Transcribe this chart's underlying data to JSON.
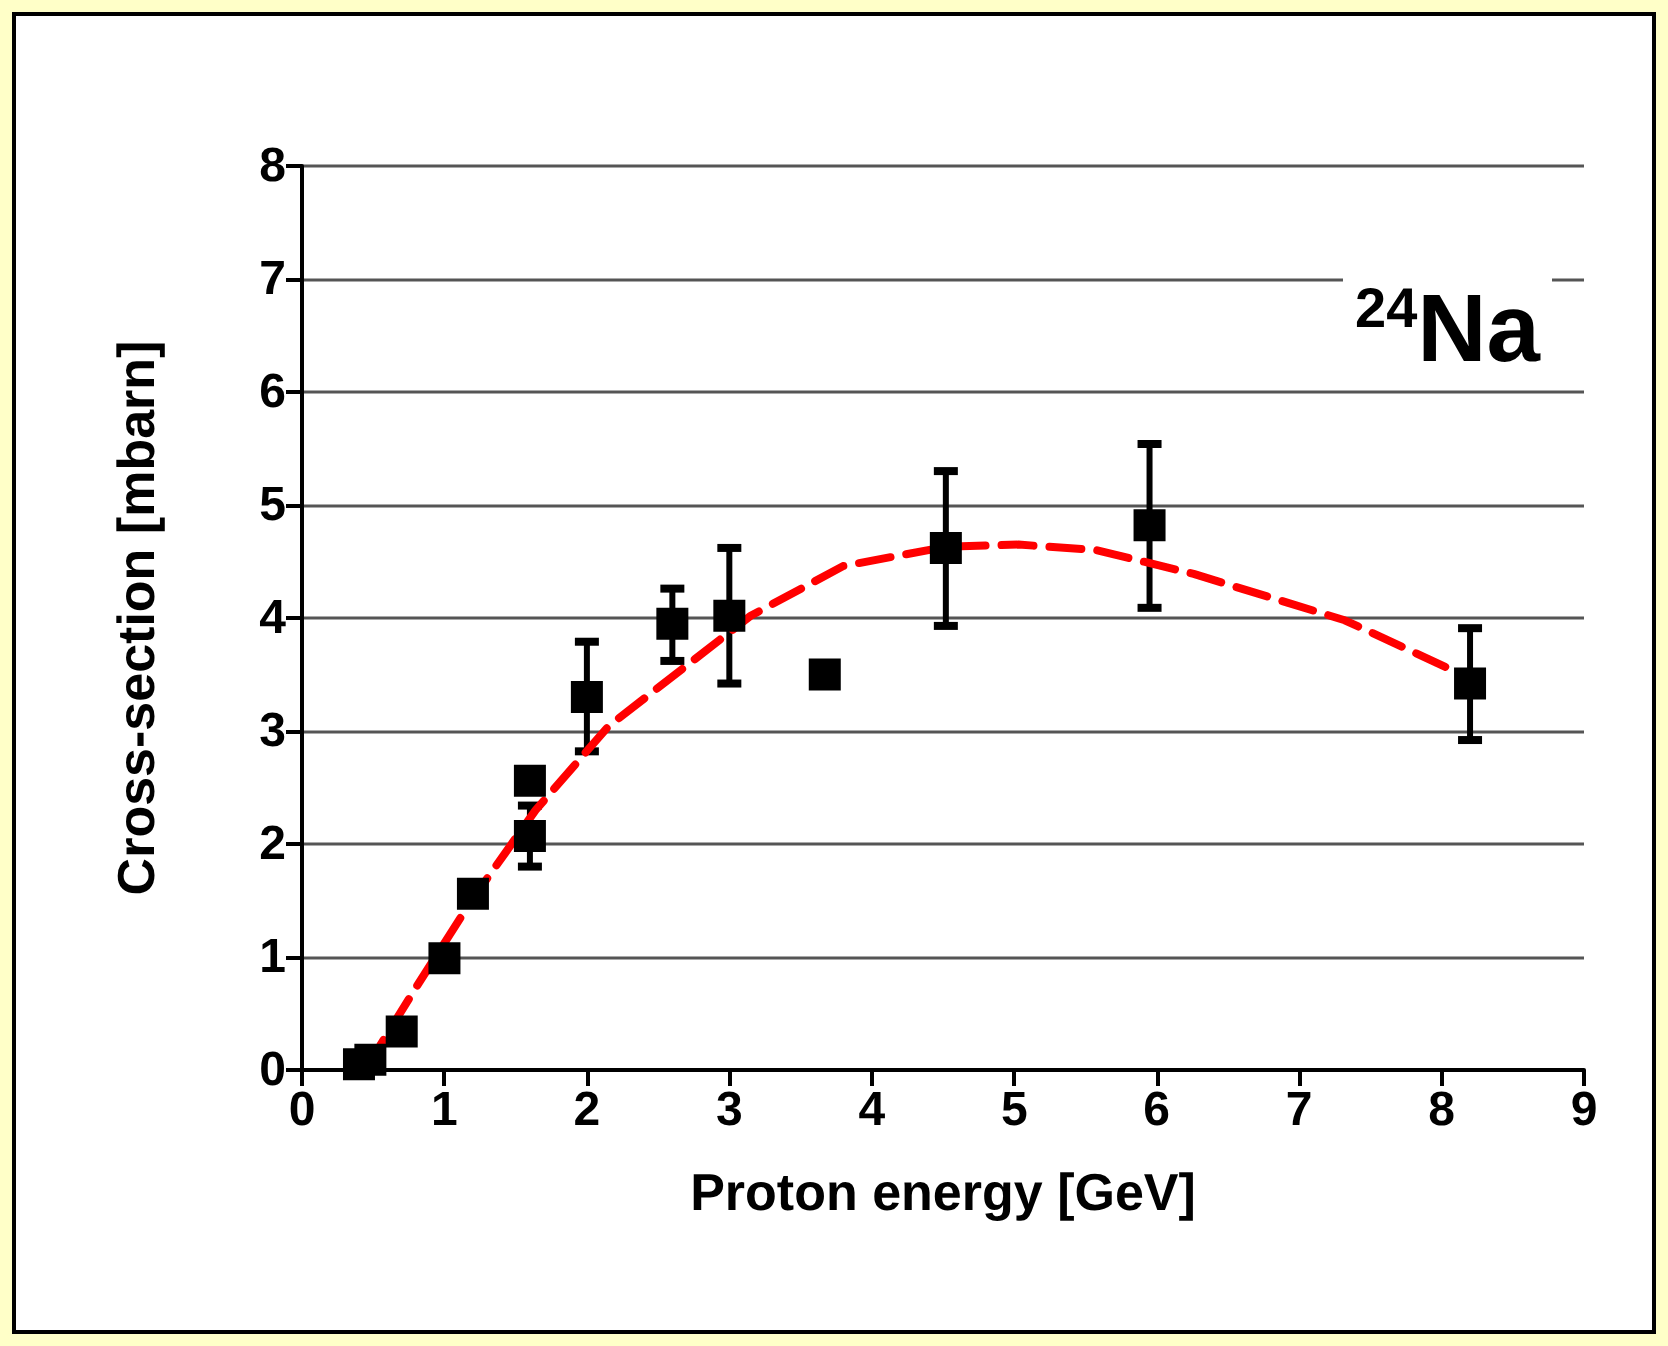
{
  "chart_data": {
    "type": "scatter",
    "xlabel": "Proton energy [GeV]",
    "ylabel": "Cross-section [mbarn]",
    "annotations": [
      "$^{24}$Na"
    ],
    "xlim": [
      0,
      9
    ],
    "ylim": [
      0,
      8
    ],
    "xticks": [
      0,
      1,
      2,
      3,
      4,
      5,
      6,
      7,
      8,
      9
    ],
    "yticks": [
      0,
      1,
      2,
      3,
      4,
      5,
      6,
      7,
      8
    ],
    "grid": "y",
    "marker": "square",
    "series": [
      {
        "color": "#000000",
        "x": [
          0.4,
          0.48,
          0.7,
          1.0,
          1.2,
          1.6,
          1.6,
          2.0,
          2.6,
          3.0,
          3.67,
          4.52,
          5.95,
          8.2
        ],
        "values": [
          0.05,
          0.09,
          0.34,
          0.99,
          1.56,
          2.56,
          2.07,
          3.3,
          3.95,
          4.02,
          3.5,
          4.62,
          4.82,
          3.42
        ],
        "errors": [
          null,
          null,
          null,
          null,
          null,
          null,
          0.27,
          [
            2.82,
            3.79
          ],
          [
            3.62,
            4.26
          ],
          [
            3.42,
            4.62
          ],
          null,
          [
            3.93,
            5.3
          ],
          [
            4.09,
            5.54
          ],
          [
            2.92,
            3.91
          ]
        ]
      },
      {
        "type": "line",
        "color": "#ff0000",
        "line_style": "dashed",
        "marker": "none",
        "x": [
          0.5,
          0.55,
          0.8,
          1.19,
          1.64,
          2.15,
          3.15,
          3.8,
          4.52,
          5.03,
          5.58,
          6.26,
          7.32,
          8.04
        ],
        "values": [
          0.0,
          0.22,
          0.73,
          1.5,
          2.3,
          3.04,
          4.02,
          4.46,
          4.63,
          4.65,
          4.6,
          4.39,
          3.98,
          3.56
        ]
      }
    ]
  }
}
